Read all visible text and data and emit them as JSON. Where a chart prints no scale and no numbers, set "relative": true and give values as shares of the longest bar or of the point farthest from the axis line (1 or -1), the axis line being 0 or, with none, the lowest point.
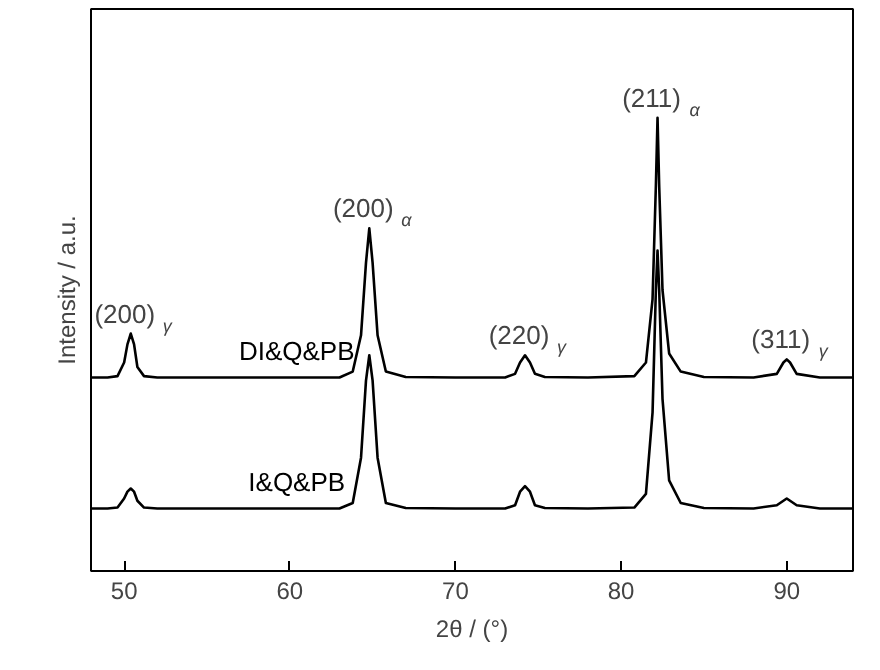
{
  "chart_data": {
    "type": "line",
    "relative": true,
    "xlabel": "2θ / (°)",
    "ylabel": "Intensity / a.u.",
    "xlim": [
      48,
      94
    ],
    "xticks": [
      50,
      60,
      70,
      80,
      90
    ],
    "tick_labels": "x",
    "grid": false,
    "legend": false,
    "marker": "none",
    "line_style": "solid",
    "x": [
      48,
      49,
      49.6,
      50.0,
      50.2,
      50.4,
      50.6,
      50.8,
      51.2,
      52,
      56,
      60,
      63,
      63.8,
      64.3,
      64.6,
      64.8,
      65.0,
      65.3,
      65.8,
      67,
      70,
      73,
      73.6,
      73.9,
      74.2,
      74.5,
      74.8,
      75.4,
      78,
      80.8,
      81.5,
      81.9,
      82.1,
      82.2,
      82.3,
      82.5,
      82.9,
      83.6,
      85,
      88,
      89.4,
      89.8,
      90.0,
      90.2,
      90.6,
      92,
      94
    ],
    "series": [
      {
        "name": "DI&Q&PB",
        "color": "#000000",
        "values": [
          0.427,
          0.427,
          0.43,
          0.46,
          0.5,
          0.524,
          0.5,
          0.45,
          0.43,
          0.427,
          0.427,
          0.427,
          0.427,
          0.44,
          0.52,
          0.68,
          0.756,
          0.68,
          0.52,
          0.44,
          0.428,
          0.427,
          0.427,
          0.435,
          0.46,
          0.476,
          0.46,
          0.435,
          0.428,
          0.427,
          0.43,
          0.46,
          0.6,
          0.85,
          1.0,
          0.85,
          0.62,
          0.48,
          0.44,
          0.428,
          0.427,
          0.435,
          0.46,
          0.467,
          0.46,
          0.435,
          0.427,
          0.427
        ]
      },
      {
        "name": "I&Q&PB",
        "color": "#000000",
        "values": [
          0.138,
          0.138,
          0.14,
          0.16,
          0.175,
          0.182,
          0.175,
          0.155,
          0.14,
          0.138,
          0.138,
          0.138,
          0.138,
          0.15,
          0.25,
          0.42,
          0.476,
          0.42,
          0.25,
          0.15,
          0.139,
          0.138,
          0.138,
          0.145,
          0.175,
          0.187,
          0.175,
          0.145,
          0.139,
          0.138,
          0.14,
          0.17,
          0.35,
          0.62,
          0.707,
          0.62,
          0.38,
          0.2,
          0.15,
          0.139,
          0.138,
          0.145,
          0.155,
          0.16,
          0.155,
          0.145,
          0.138,
          0.138
        ]
      }
    ],
    "annotations": [
      {
        "text": "(200)$_{γ}$",
        "x": 50.4,
        "y": 0.524
      },
      {
        "text": "(200)$_{α}$",
        "x": 64.8,
        "y": 0.756
      },
      {
        "text": "(211)$_{α}$",
        "x": 82.2,
        "y": 1.0
      },
      {
        "text": "(220)$_{γ}$",
        "x": 74.2,
        "y": 0.476
      },
      {
        "text": "(311)$_{γ}$",
        "x": 90.0,
        "y": 0.467
      }
    ]
  }
}
